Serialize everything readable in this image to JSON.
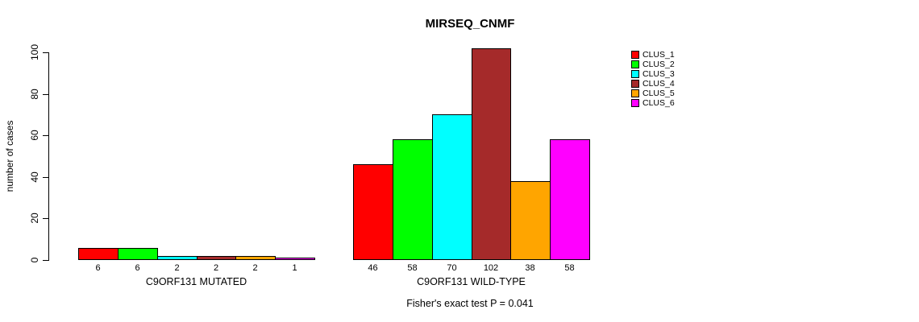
{
  "chart_data": {
    "type": "bar",
    "title": "MIRSEQ_CNMF",
    "ylabel": "number of cases",
    "xlabel": "",
    "annotation": "Fisher's exact test P = 0.041",
    "ylim": [
      0,
      100
    ],
    "y_ticks": [
      0,
      20,
      40,
      60,
      80,
      100
    ],
    "grid": false,
    "legend_position": "right-inside",
    "bar_value_labels": true,
    "categories": [
      "C9ORF131 MUTATED",
      "C9ORF131 WILD-TYPE"
    ],
    "series": [
      {
        "name": "CLUS_1",
        "color": "#FF0000",
        "values": [
          6,
          46
        ]
      },
      {
        "name": "CLUS_2",
        "color": "#00FF00",
        "values": [
          6,
          58
        ]
      },
      {
        "name": "CLUS_3",
        "color": "#00FFFF",
        "values": [
          2,
          70
        ]
      },
      {
        "name": "CLUS_4",
        "color": "#A52A2A",
        "values": [
          2,
          102
        ]
      },
      {
        "name": "CLUS_5",
        "color": "#FFA500",
        "values": [
          2,
          38
        ]
      },
      {
        "name": "CLUS_6",
        "color": "#FF00FF",
        "values": [
          1,
          58
        ]
      }
    ]
  }
}
